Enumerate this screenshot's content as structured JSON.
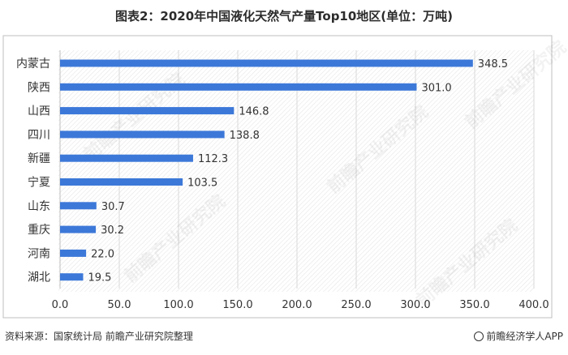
{
  "title": "图表2：2020年中国液化天然气产量Top10地区(单位：万吨)",
  "footer": {
    "source": "资料来源：国家统计局 前瞻产业研究院整理",
    "brand": "前瞻经济学人APP"
  },
  "watermark": "前瞻产业研究院",
  "colors": {
    "bar": "#3c78d8",
    "grid": "#d9d9d9",
    "frame": "#bfbfbf"
  },
  "chart_data": {
    "type": "bar",
    "orientation": "horizontal",
    "categories": [
      "内蒙古",
      "陕西",
      "山西",
      "四川",
      "新疆",
      "宁夏",
      "山东",
      "重庆",
      "河南",
      "湖北"
    ],
    "values": [
      348.5,
      301.0,
      146.8,
      138.8,
      112.3,
      103.5,
      30.7,
      30.2,
      22.0,
      19.5
    ],
    "value_labels": [
      "348.5",
      "301.0",
      "146.8",
      "138.8",
      "112.3",
      "103.5",
      "30.7",
      "30.2",
      "22.0",
      "19.5"
    ],
    "xlim": [
      0,
      400
    ],
    "xticks": [
      "0.0",
      "50.0",
      "100.0",
      "150.0",
      "200.0",
      "250.0",
      "300.0",
      "350.0",
      "400.0"
    ],
    "xtick_values": [
      0,
      50,
      100,
      150,
      200,
      250,
      300,
      350,
      400
    ],
    "grid": "vertical",
    "legend": "none"
  }
}
